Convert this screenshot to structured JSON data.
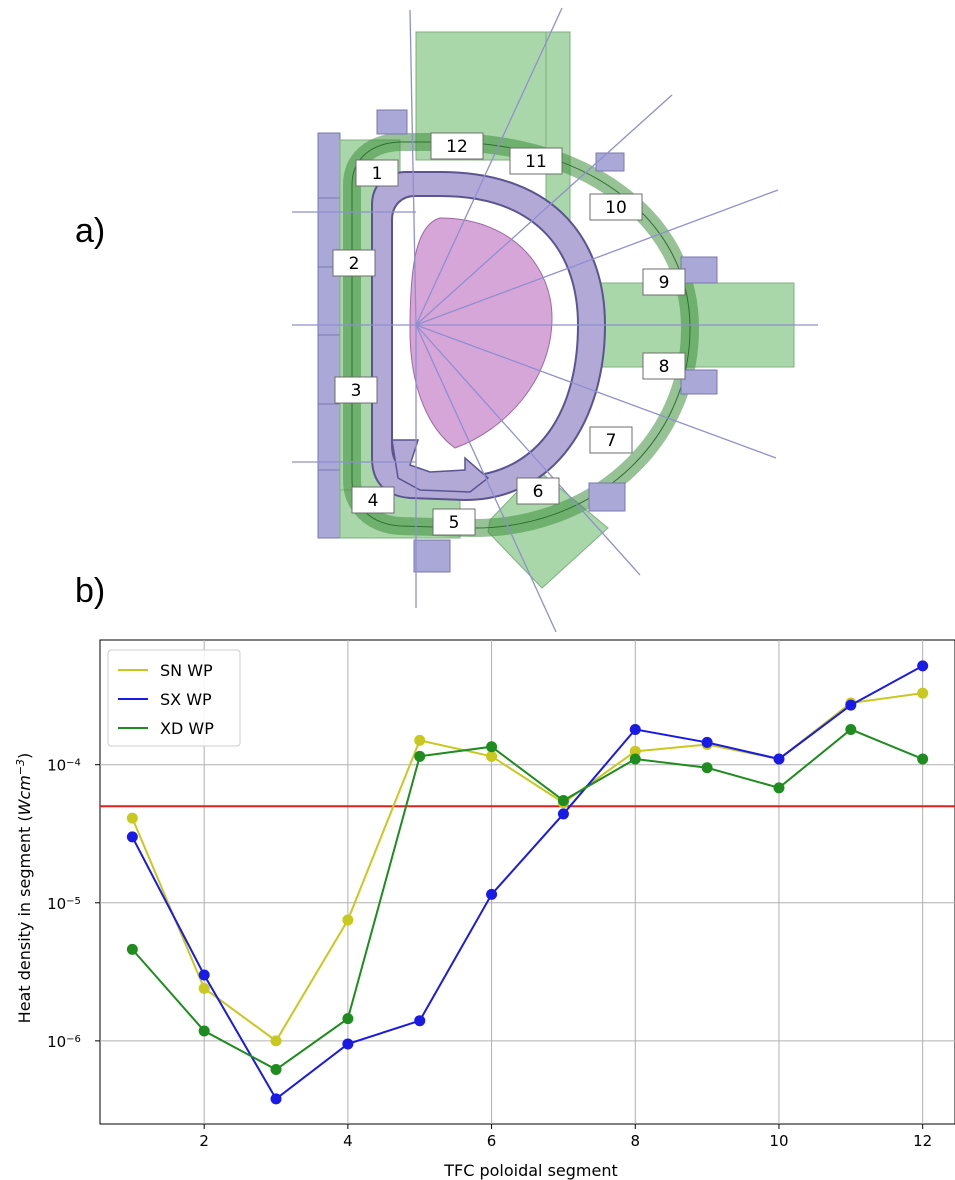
{
  "panels": {
    "a_label": "a)",
    "b_label": "b)"
  },
  "diagram": {
    "segment_labels": [
      "1",
      "2",
      "3",
      "4",
      "5",
      "6",
      "7",
      "8",
      "9",
      "10",
      "11",
      "12"
    ],
    "colors": {
      "plasma": "#d7a6d9",
      "vessel": "#b3a9d6",
      "support": "#a9d7a9",
      "coil": "#a9a8d6",
      "coil_edge": "#7a78b0",
      "ray": "#8f8fd0"
    }
  },
  "chart_data": {
    "type": "line",
    "x": [
      1,
      2,
      3,
      4,
      5,
      6,
      7,
      8,
      9,
      10,
      11,
      12
    ],
    "xlabel": "TFC poloidal segment",
    "ylabel": "Heat density in segment (",
    "ylabel_unit": "Wcm",
    "ylabel_exp": "−3",
    "ylabel_close": ")",
    "yscale": "log",
    "ylim": [
      2.5e-07,
      0.0008
    ],
    "xlim": [
      0.55,
      12.45
    ],
    "xticks": [
      2,
      4,
      6,
      8,
      10,
      12
    ],
    "xtick_labels": [
      "2",
      "4",
      "6",
      "8",
      "10",
      "12"
    ],
    "yticks": [
      1e-06,
      1e-05,
      0.0001
    ],
    "ytick_base": [
      "10",
      "10",
      "10"
    ],
    "ytick_exp": [
      "−6",
      "−5",
      "−4"
    ],
    "grid": true,
    "legend_position": "top-left",
    "threshold": {
      "value": 5e-05,
      "color": "#e02020"
    },
    "series": [
      {
        "name": "SN WP",
        "color": "#c8c81e",
        "values": [
          4.1e-05,
          2.4e-06,
          1e-06,
          7.5e-06,
          0.00015,
          0.000115,
          5.3e-05,
          0.000125,
          0.00014,
          0.00011,
          0.00028,
          0.00033
        ]
      },
      {
        "name": "SX WP",
        "color": "#1a1ae6",
        "values": [
          3e-05,
          3e-06,
          3.8e-07,
          9.5e-07,
          1.4e-06,
          1.15e-05,
          4.4e-05,
          0.00018,
          0.000145,
          0.00011,
          0.00027,
          0.00052
        ]
      },
      {
        "name": "XD WP",
        "color": "#1e8c1e",
        "values": [
          4.6e-06,
          1.18e-06,
          6.2e-07,
          1.45e-06,
          0.000115,
          0.000135,
          5.5e-05,
          0.00011,
          9.5e-05,
          6.8e-05,
          0.00018,
          0.00011
        ]
      }
    ]
  }
}
